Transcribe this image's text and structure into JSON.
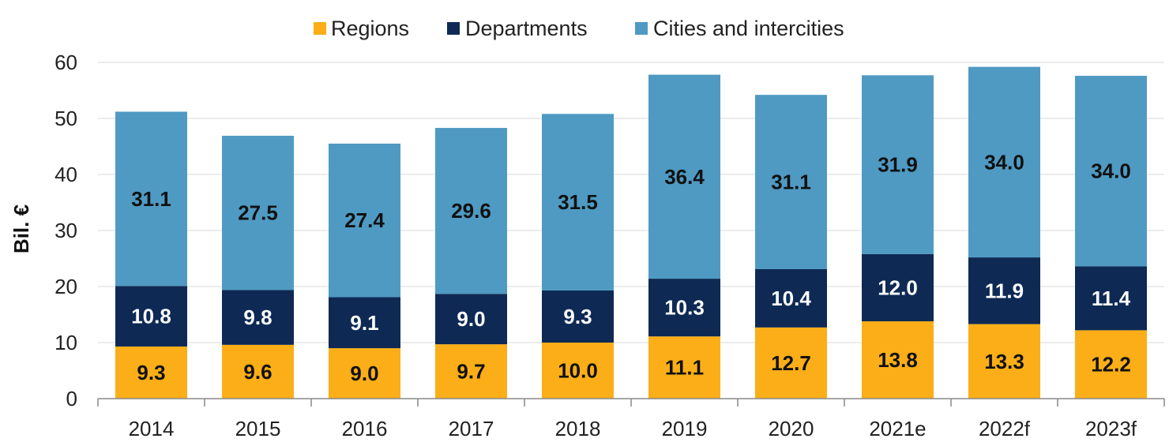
{
  "chart_data": {
    "type": "bar",
    "stacked": true,
    "categories": [
      "2014",
      "2015",
      "2016",
      "2017",
      "2018",
      "2019",
      "2020",
      "2021e",
      "2022f",
      "2023f"
    ],
    "series": [
      {
        "name": "Regions",
        "color": "#FBAE17",
        "label_color": "#111111",
        "values": [
          9.3,
          9.6,
          9.0,
          9.7,
          10.0,
          11.1,
          12.7,
          13.8,
          13.3,
          12.2
        ]
      },
      {
        "name": "Departments",
        "color": "#0E2A54",
        "label_color": "#ffffff",
        "values": [
          10.8,
          9.8,
          9.1,
          9.0,
          9.3,
          10.3,
          10.4,
          12.0,
          11.9,
          11.4
        ]
      },
      {
        "name": "Cities and intercities",
        "color": "#4F9AC3",
        "label_color": "#111111",
        "values": [
          31.1,
          27.5,
          27.4,
          29.6,
          31.5,
          36.4,
          31.1,
          31.9,
          34.0,
          34.0
        ]
      }
    ],
    "ylabel": "Bil. €",
    "ylim": [
      0,
      60
    ],
    "yticks": [
      "0",
      "10",
      "20",
      "30",
      "40",
      "50",
      "60"
    ],
    "grid": true,
    "legend_position": "top-center"
  }
}
